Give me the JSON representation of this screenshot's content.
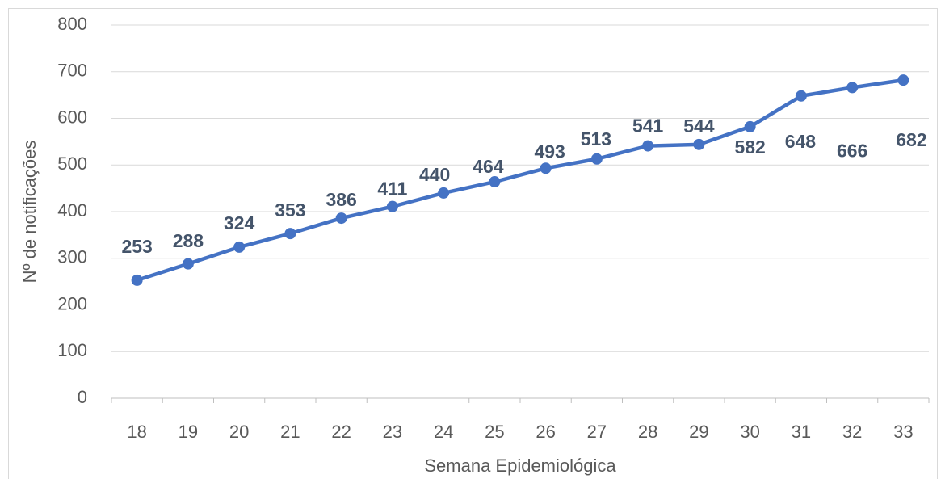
{
  "chart_data": {
    "type": "line",
    "y_label": "Nº de notificações",
    "x_label": "Semana Epidemiológica",
    "categories": [
      "18",
      "19",
      "20",
      "21",
      "22",
      "23",
      "24",
      "25",
      "26",
      "27",
      "28",
      "29",
      "30",
      "31",
      "32",
      "33"
    ],
    "series": [
      {
        "name": "Nº de notificações",
        "color": "#4472c4",
        "values": [
          253,
          288,
          324,
          353,
          386,
          411,
          440,
          464,
          493,
          513,
          541,
          544,
          582,
          648,
          666,
          682
        ]
      }
    ],
    "ylim": [
      0,
      800
    ],
    "yticks": [
      0,
      100,
      200,
      300,
      400,
      500,
      600,
      700,
      800
    ],
    "grid": true,
    "label_color": "#44546a"
  }
}
